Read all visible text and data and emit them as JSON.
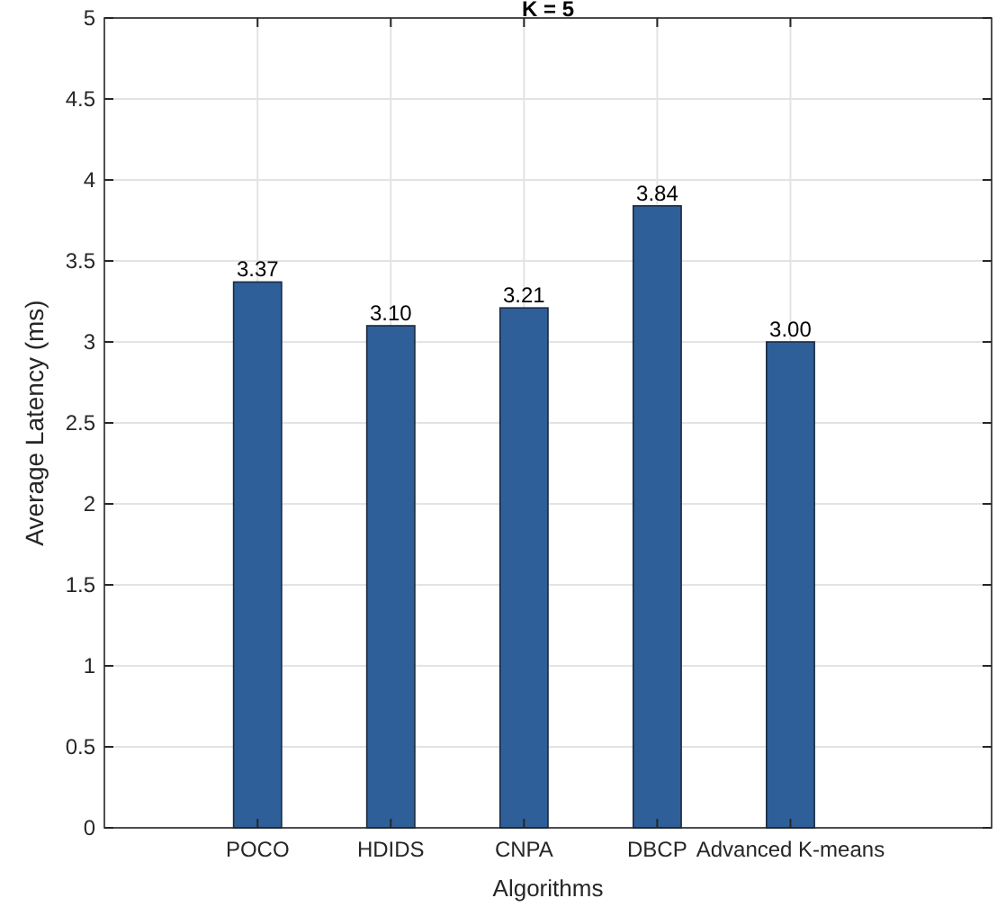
{
  "chart_data": {
    "type": "bar",
    "title": "K = 5",
    "xlabel": "Algorithms",
    "ylabel": "Average Latency (ms)",
    "categories": [
      "POCO",
      "HDIDS",
      "CNPA",
      "DBCP",
      "Advanced K-means"
    ],
    "values": [
      3.37,
      3.1,
      3.21,
      3.84,
      3.0
    ],
    "value_labels": [
      "3.37",
      "3.10",
      "3.21",
      "3.84",
      "3.00"
    ],
    "color": "#2f5f98",
    "ylim": [
      0,
      5
    ],
    "yticks": [
      0,
      0.5,
      1,
      1.5,
      2,
      2.5,
      3,
      3.5,
      4,
      4.5,
      5
    ],
    "grid": true
  }
}
